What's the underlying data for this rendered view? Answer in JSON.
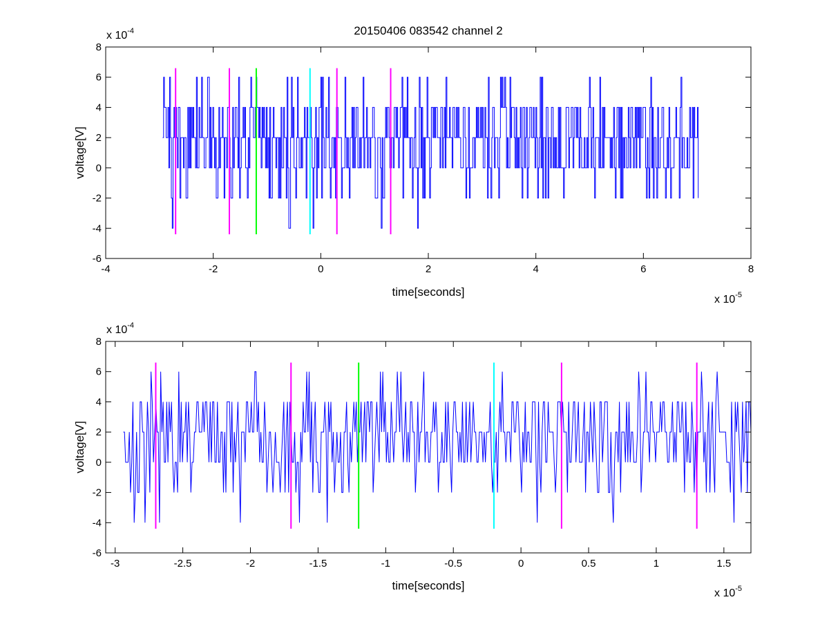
{
  "figure_title": "20150406 083542 channel 2",
  "colors": {
    "signal": "#0000ff",
    "magenta": "#ff00ff",
    "green": "#00ff00",
    "cyan": "#00ffff",
    "axes": "#000000"
  },
  "chart_data": [
    {
      "type": "line",
      "title": "20150406 083542 channel 2",
      "xlabel": "time[seconds]",
      "ylabel": "voltage[V]",
      "xlim": [
        -4e-05,
        8e-05
      ],
      "ylim": [
        -0.0006,
        0.0008
      ],
      "x_multiplier": "x 10",
      "x_exponent": "-5",
      "y_multiplier": "x 10",
      "y_exponent": "-4",
      "xticks": [
        -4,
        -2,
        0,
        2,
        4,
        6,
        8
      ],
      "yticks": [
        -6,
        -4,
        -2,
        0,
        2,
        4,
        6,
        8
      ],
      "grid": false,
      "series": [
        {
          "style": "step",
          "color": "#0000ff",
          "x_range": [
            -2.94e-05,
            7.02e-05
          ],
          "baseline": 0.0002,
          "levels": [
            -0.0004,
            -0.0002,
            0,
            0.0002,
            0.0004,
            0.0006
          ]
        }
      ],
      "markers": [
        {
          "x": -2.7e-05,
          "color": "#ff00ff",
          "ymin": -0.00044,
          "ymax": 0.00066
        },
        {
          "x": -1.7e-05,
          "color": "#ff00ff",
          "ymin": -0.00044,
          "ymax": 0.00066
        },
        {
          "x": -1.2e-05,
          "color": "#00ff00",
          "ymin": -0.00044,
          "ymax": 0.00066
        },
        {
          "x": -2e-06,
          "color": "#00ffff",
          "ymin": -0.00044,
          "ymax": 0.00066
        },
        {
          "x": 3e-06,
          "color": "#ff00ff",
          "ymin": -0.00044,
          "ymax": 0.00066
        },
        {
          "x": 1.3e-05,
          "color": "#ff00ff",
          "ymin": -0.00044,
          "ymax": 0.00066
        }
      ]
    },
    {
      "type": "line",
      "title": "",
      "xlabel": "time[seconds]",
      "ylabel": "voltage[V]",
      "xlim": [
        -3.07e-05,
        1.7e-05
      ],
      "ylim": [
        -0.0006,
        0.0008
      ],
      "x_multiplier": "x 10",
      "x_exponent": "-5",
      "y_multiplier": "x 10",
      "y_exponent": "-4",
      "xticks": [
        -3,
        -2.5,
        -2,
        -1.5,
        -1,
        -0.5,
        0,
        0.5,
        1,
        1.5
      ],
      "yticks": [
        -6,
        -4,
        -2,
        0,
        2,
        4,
        6,
        8
      ],
      "grid": false,
      "series": [
        {
          "style": "line",
          "color": "#0000ff",
          "x_range": [
            -2.94e-05,
            1.7e-05
          ],
          "baseline": 0.0002,
          "levels": [
            -0.0004,
            -0.0002,
            0,
            0.0002,
            0.0004,
            0.0006
          ]
        }
      ],
      "markers": [
        {
          "x": -2.7e-05,
          "color": "#ff00ff",
          "ymin": -0.00044,
          "ymax": 0.00066
        },
        {
          "x": -1.7e-05,
          "color": "#ff00ff",
          "ymin": -0.00044,
          "ymax": 0.00066
        },
        {
          "x": -1.2e-05,
          "color": "#00ff00",
          "ymin": -0.00044,
          "ymax": 0.00066
        },
        {
          "x": -2e-06,
          "color": "#00ffff",
          "ymin": -0.00044,
          "ymax": 0.00066
        },
        {
          "x": 3e-06,
          "color": "#ff00ff",
          "ymin": -0.00044,
          "ymax": 0.00066
        },
        {
          "x": 1.3e-05,
          "color": "#ff00ff",
          "ymin": -0.00044,
          "ymax": 0.00066
        }
      ]
    }
  ]
}
